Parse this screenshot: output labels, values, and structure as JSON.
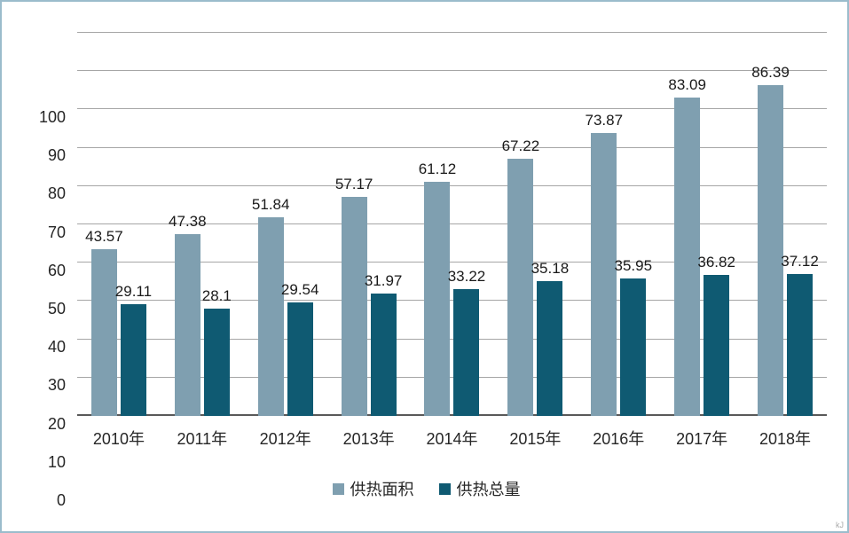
{
  "chart_data": {
    "type": "bar",
    "title": "",
    "xlabel": "",
    "ylabel": "",
    "categories": [
      "2010年",
      "2011年",
      "2012年",
      "2013年",
      "2014年",
      "2015年",
      "2016年",
      "2017年",
      "2018年"
    ],
    "series": [
      {
        "name": "供热面积",
        "color": "#7f9fb0",
        "values": [
          43.57,
          47.38,
          51.84,
          57.17,
          61.12,
          67.22,
          73.87,
          83.09,
          86.39
        ]
      },
      {
        "name": "供热总量",
        "color": "#0f5a72",
        "values": [
          29.11,
          28.1,
          29.54,
          31.97,
          33.22,
          35.18,
          35.95,
          36.82,
          37.12
        ]
      }
    ],
    "ylim": [
      0,
      100
    ],
    "ytick_step": 10,
    "grid": true,
    "legend_position": "bottom"
  },
  "colors": {
    "gridline": "#a6a6a6",
    "axis_line": "#595959",
    "frame_border": "#9bbccc",
    "text": "#262626"
  },
  "footnote": "kJ"
}
